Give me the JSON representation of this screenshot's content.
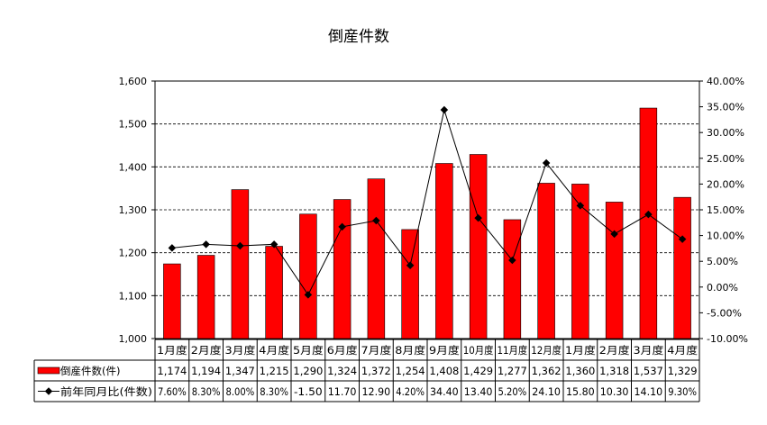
{
  "chart_data": {
    "type": "bar",
    "title": "倒産件数",
    "categories": [
      "1月度",
      "2月度",
      "3月度",
      "4月度",
      "5月度",
      "6月度",
      "7月度",
      "8月度",
      "9月度",
      "10月度",
      "11月度",
      "12月度",
      "1月度",
      "2月度",
      "3月度",
      "4月度"
    ],
    "series": [
      {
        "name": "倒産件数(件)",
        "type": "bar",
        "axis": "left",
        "color": "#ff0000",
        "values": [
          1174,
          1194,
          1347,
          1215,
          1290,
          1324,
          1372,
          1254,
          1408,
          1429,
          1277,
          1362,
          1360,
          1318,
          1537,
          1329
        ],
        "labels": [
          "1,174",
          "1,194",
          "1,347",
          "1,215",
          "1,290",
          "1,324",
          "1,372",
          "1,254",
          "1,408",
          "1,429",
          "1,277",
          "1,362",
          "1,360",
          "1,318",
          "1,537",
          "1,329"
        ]
      },
      {
        "name": "前年同月比(件数)",
        "type": "line",
        "axis": "right",
        "color": "#000000",
        "values": [
          7.6,
          8.3,
          8.0,
          8.3,
          -1.5,
          11.7,
          12.9,
          4.2,
          34.4,
          13.4,
          5.2,
          24.1,
          15.8,
          10.3,
          14.1,
          9.3
        ],
        "labels": [
          "7.60%",
          "8.30%",
          "8.00%",
          "8.30%",
          "-1.50",
          "11.70",
          "12.90",
          "4.20%",
          "34.40",
          "13.40",
          "5.20%",
          "24.10",
          "15.80",
          "10.30",
          "14.10",
          "9.30%"
        ]
      }
    ],
    "left_axis": {
      "min": 1000,
      "max": 1600,
      "step": 100,
      "ticks": [
        "1,000",
        "1,100",
        "1,200",
        "1,300",
        "1,400",
        "1,500",
        "1,600"
      ]
    },
    "right_axis": {
      "min": -10,
      "max": 40,
      "step": 5,
      "ticks": [
        "-10.00%",
        "-5.00%",
        "0.00%",
        "5.00%",
        "10.00%",
        "15.00%",
        "20.00%",
        "25.00%",
        "30.00%",
        "35.00%",
        "40.00%"
      ]
    },
    "grid": true,
    "legend": "data-table"
  }
}
